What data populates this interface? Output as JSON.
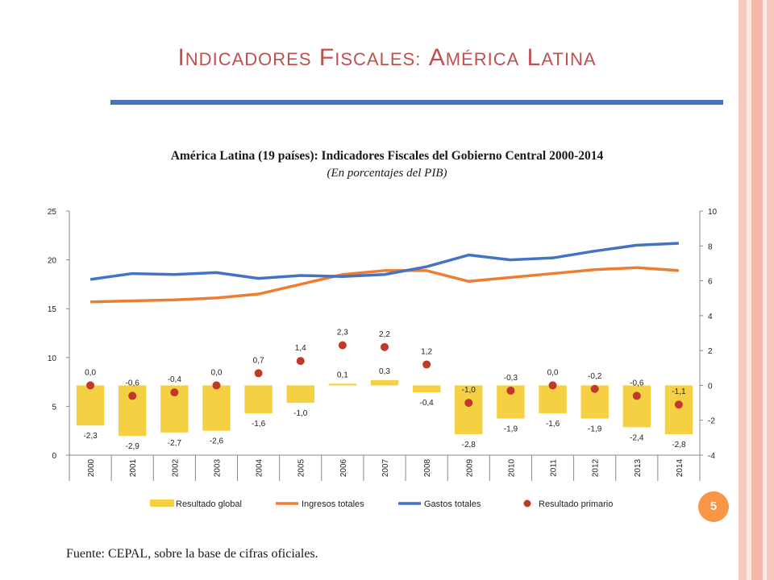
{
  "slide": {
    "title": "Indicadores Fiscales: América Latina",
    "source": "Fuente: CEPAL, sobre la base de cifras oficiales.",
    "page_number": "5",
    "colors": {
      "title": "#c0504d",
      "underline": "#4472c4",
      "badge": "#f79646",
      "stripes": [
        "#f7c9bd",
        "#fbe0d8",
        "#f4b8a8"
      ]
    }
  },
  "chart_data": {
    "type": "bar",
    "title": "América Latina (19 países): Indicadores Fiscales del Gobierno Central 2000-2014",
    "subtitle": "(En porcentajes del PIB)",
    "categories": [
      "2000",
      "2001",
      "2002",
      "2003",
      "2004",
      "2005",
      "2006",
      "2007",
      "2008",
      "2009",
      "2010",
      "2011",
      "2012",
      "2013",
      "2014"
    ],
    "y_left": {
      "min": 0,
      "max": 25,
      "ticks": [
        0,
        5,
        10,
        15,
        20,
        25
      ]
    },
    "y_right": {
      "min": -4,
      "max": 10,
      "ticks": [
        -4,
        -2,
        0,
        2,
        4,
        6,
        8,
        10
      ]
    },
    "series": [
      {
        "name": "Resultado global",
        "type": "bar",
        "axis": "right",
        "color": "#f5d042",
        "values": [
          -2.3,
          -2.9,
          -2.7,
          -2.6,
          -1.6,
          -1.0,
          0.1,
          0.3,
          -0.4,
          -2.8,
          -1.9,
          -1.6,
          -1.9,
          -2.4,
          -2.8
        ],
        "labels": [
          "-2,3",
          "-2,9",
          "-2,7",
          "-2,6",
          "-1,6",
          "-1,0",
          "0,1",
          "0,3",
          "-0,4",
          "-2,8",
          "-1,9",
          "-1,6",
          "-1,9",
          "-2,4",
          "-2,8"
        ]
      },
      {
        "name": "Ingresos totales",
        "type": "line",
        "axis": "left",
        "color": "#ed7d31",
        "values": [
          15.7,
          15.8,
          15.9,
          16.1,
          16.5,
          17.5,
          18.5,
          18.9,
          18.9,
          17.8,
          18.2,
          18.6,
          19.0,
          19.2,
          18.9
        ]
      },
      {
        "name": "Gastos totales",
        "type": "line",
        "axis": "left",
        "color": "#4472c4",
        "values": [
          18.0,
          18.6,
          18.5,
          18.7,
          18.1,
          18.4,
          18.3,
          18.5,
          19.3,
          20.5,
          20.0,
          20.2,
          20.9,
          21.5,
          21.7
        ]
      },
      {
        "name": "Resultado primario",
        "type": "scatter",
        "axis": "right",
        "color": "#c0392b",
        "values": [
          0.0,
          -0.6,
          -0.4,
          0.0,
          0.7,
          1.4,
          2.3,
          2.2,
          1.2,
          -1.0,
          -0.3,
          0.0,
          -0.2,
          -0.6,
          -1.1
        ],
        "labels": [
          "0,0",
          "-0,6",
          "-0,4",
          "0,0",
          "0,7",
          "1,4",
          "2,3",
          "2,2",
          "1,2",
          "-1,0",
          "-0,3",
          "0,0",
          "-0,2",
          "-0,6",
          "-1,1"
        ]
      }
    ],
    "legend": {
      "position": "bottom"
    },
    "grid": false
  }
}
